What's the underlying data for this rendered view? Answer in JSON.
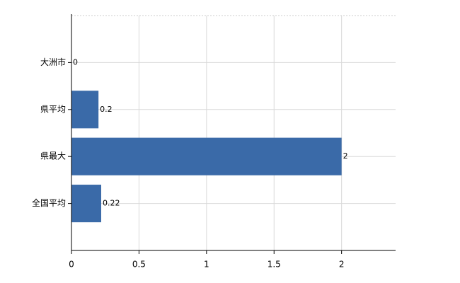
{
  "chart_data": {
    "type": "barh",
    "categories": [
      "大洲市",
      "県平均",
      "県最大",
      "全国平均"
    ],
    "values": [
      0,
      0.2,
      2,
      0.22
    ],
    "color": "#3a6aa8",
    "xlim": [
      0,
      2.4
    ],
    "xticks": [
      0,
      0.5,
      1,
      1.5,
      2
    ],
    "grid": true
  }
}
